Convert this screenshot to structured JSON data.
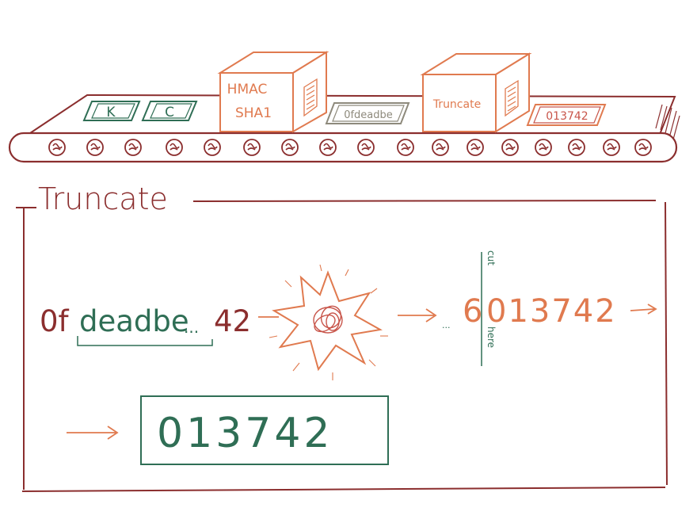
{
  "colors": {
    "maroon": "#8b2e2e",
    "orange": "#e07a4f",
    "green": "#2f6e55",
    "gray": "#8e8a7c",
    "red_scribble": "#c8554a"
  },
  "conveyor": {
    "tokens": {
      "key": "K",
      "counter": "C",
      "hash_partial": "0fdeadbe",
      "result": "013742"
    },
    "machines": {
      "hmac_line1": "HMAC",
      "hmac_line2": "SHA1",
      "truncate": "Truncate"
    }
  },
  "panel": {
    "title": "Truncate",
    "hash_prefix": "0f",
    "hash_middle": "deadbe",
    "hash_ellipsis": "...",
    "hash_suffix": "42",
    "input_dots": "...",
    "discarded_digit": "6",
    "kept_digits": "013742",
    "cut_label": "cut",
    "here_label": "here",
    "final_code": "013742"
  }
}
